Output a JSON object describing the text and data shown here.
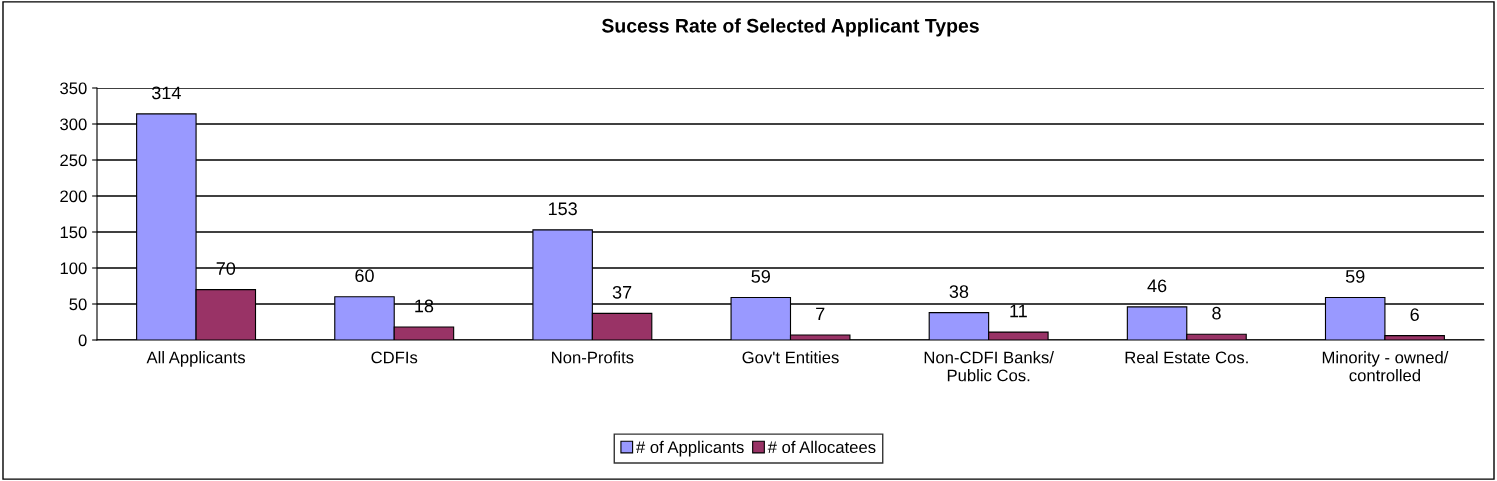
{
  "chart_data": {
    "type": "bar",
    "title": "Sucess Rate of Selected Applicant Types",
    "categories": [
      "All Applicants",
      "CDFIs",
      "Non-Profits",
      "Gov't Entities",
      "Non-CDFI Banks/\nPublic Cos.",
      "Real Estate Cos.",
      "Minority - owned/\ncontrolled"
    ],
    "series": [
      {
        "name": "# of Applicants",
        "color": "#9999ff",
        "values": [
          314,
          60,
          153,
          59,
          38,
          46,
          59
        ]
      },
      {
        "name": "# of Allocatees",
        "color": "#993366",
        "values": [
          70,
          18,
          37,
          7,
          11,
          8,
          6
        ]
      }
    ],
    "ylim": [
      0,
      350
    ],
    "yticks": [
      0,
      50,
      100,
      150,
      200,
      250,
      300,
      350
    ],
    "grid": "y",
    "legend": "bottom",
    "data_labels": true
  }
}
